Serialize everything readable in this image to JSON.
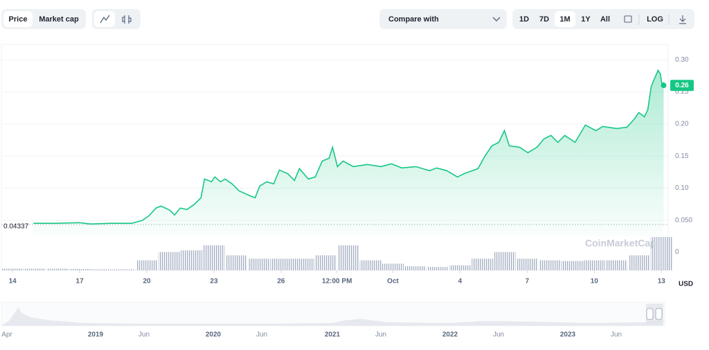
{
  "toolbar": {
    "view": [
      "Price",
      "Market cap"
    ],
    "compare": "Compare with",
    "ranges": [
      "1D",
      "7D",
      "1M",
      "1Y",
      "All"
    ],
    "active_range": "1M",
    "log": "LOG"
  },
  "chart_data": {
    "type": "line",
    "x": [
      0.93,
      1.92,
      3.0,
      3.47,
      4.4,
      5.33,
      5.79,
      6.1,
      6.41,
      6.63,
      7.03,
      7.24,
      7.49,
      7.8,
      8.11,
      8.42,
      8.58,
      8.89,
      9.04,
      9.29,
      9.5,
      9.81,
      10.12,
      10.59,
      10.84,
      11.05,
      11.36,
      11.67,
      11.92,
      12.29,
      12.6,
      12.82,
      13.22,
      13.53,
      13.84,
      14.15,
      14.3,
      14.52,
      14.77,
      15.23,
      15.85,
      16.47,
      16.93,
      17.4,
      18.02,
      18.64,
      18.95,
      19.41,
      19.88,
      20.19,
      20.8,
      21.11,
      21.42,
      21.73,
      21.98,
      22.2,
      22.66,
      23.03,
      23.44,
      23.75,
      24.06,
      24.37,
      24.68,
      25.14,
      25.6,
      26.07,
      26.38,
      27.0,
      27.46,
      27.77,
      27.99,
      28.24,
      28.39,
      28.54,
      28.7,
      28.85,
      28.95,
      29.04,
      29.1
    ],
    "series": [
      {
        "color": "#16c784",
        "values": [
          0.0453,
          0.0453,
          0.0463,
          0.0442,
          0.0453,
          0.0453,
          0.0496,
          0.0571,
          0.069,
          0.0722,
          0.0657,
          0.0582,
          0.069,
          0.0668,
          0.0744,
          0.0851,
          0.1142,
          0.1099,
          0.1175,
          0.1099,
          0.1142,
          0.1067,
          0.0959,
          0.0884,
          0.0851,
          0.1034,
          0.1099,
          0.1067,
          0.1282,
          0.1228,
          0.1121,
          0.1304,
          0.1142,
          0.1175,
          0.1422,
          0.1466,
          0.1638,
          0.1336,
          0.1422,
          0.1336,
          0.1369,
          0.1336,
          0.1379,
          0.1315,
          0.1336,
          0.1272,
          0.1315,
          0.1272,
          0.1175,
          0.1228,
          0.1304,
          0.1498,
          0.1659,
          0.1713,
          0.1897,
          0.1659,
          0.1638,
          0.1552,
          0.1638,
          0.1767,
          0.1821,
          0.1713,
          0.1821,
          0.1713,
          0.1983,
          0.1897,
          0.1961,
          0.1929,
          0.195,
          0.2069,
          0.2177,
          0.2112,
          0.222,
          0.2575,
          0.2716,
          0.2834,
          0.278,
          0.2575,
          0.2651
        ]
      }
    ],
    "xlim": [
      -0.5,
      29.3
    ],
    "xticks": [
      {
        "value": 0,
        "label": "14"
      },
      {
        "value": 3,
        "label": "17"
      },
      {
        "value": 6,
        "label": "20"
      },
      {
        "value": 9,
        "label": "23"
      },
      {
        "value": 12,
        "label": "26"
      },
      {
        "value": 14.5,
        "label": "12:00 PM"
      },
      {
        "value": 17,
        "label": "Oct"
      },
      {
        "value": 20,
        "label": "4"
      },
      {
        "value": 23,
        "label": "7"
      },
      {
        "value": 26,
        "label": "10"
      },
      {
        "value": 29,
        "label": "13"
      }
    ],
    "ylim": [
      0.025,
      0.325
    ],
    "yticks": [
      {
        "value": 0.3,
        "label": "0.30"
      },
      0.25,
      {
        "value": 0.2,
        "label": "0.20"
      },
      0.15,
      {
        "value": 0.1,
        "label": "0.10"
      },
      {
        "value": 0.05,
        "label": "0.050"
      }
    ],
    "current_price": 0.26,
    "start_price": 0.04337,
    "currency": "USD",
    "watermark": "CoinMarketCap",
    "volume": {
      "axis": "y2",
      "color": "#a6b0c3",
      "x": [
        0,
        1,
        2,
        3,
        4,
        5,
        6,
        7,
        8,
        9,
        10,
        11,
        12,
        13,
        14,
        15,
        16,
        17,
        18,
        19,
        20,
        21,
        22,
        23,
        24,
        25,
        26,
        27,
        28,
        29
      ],
      "values": [
        0.05,
        0.05,
        0.05,
        0.04,
        0.03,
        0.03,
        0.3,
        0.55,
        0.6,
        0.75,
        0.45,
        0.35,
        0.35,
        0.35,
        0.45,
        0.75,
        0.3,
        0.2,
        0.12,
        0.1,
        0.15,
        0.35,
        0.55,
        0.35,
        0.3,
        0.28,
        0.3,
        0.3,
        0.45,
        1.0
      ]
    },
    "y2lim": [
      0,
      1
    ],
    "y2ticks": [
      0
    ],
    "grid": true
  },
  "navigator": {
    "labels": [
      "Apr",
      "2019",
      "Jun",
      "2020",
      "Jun",
      "2021",
      "Jun",
      "2022",
      "Jun",
      "2023",
      "Jun"
    ]
  }
}
